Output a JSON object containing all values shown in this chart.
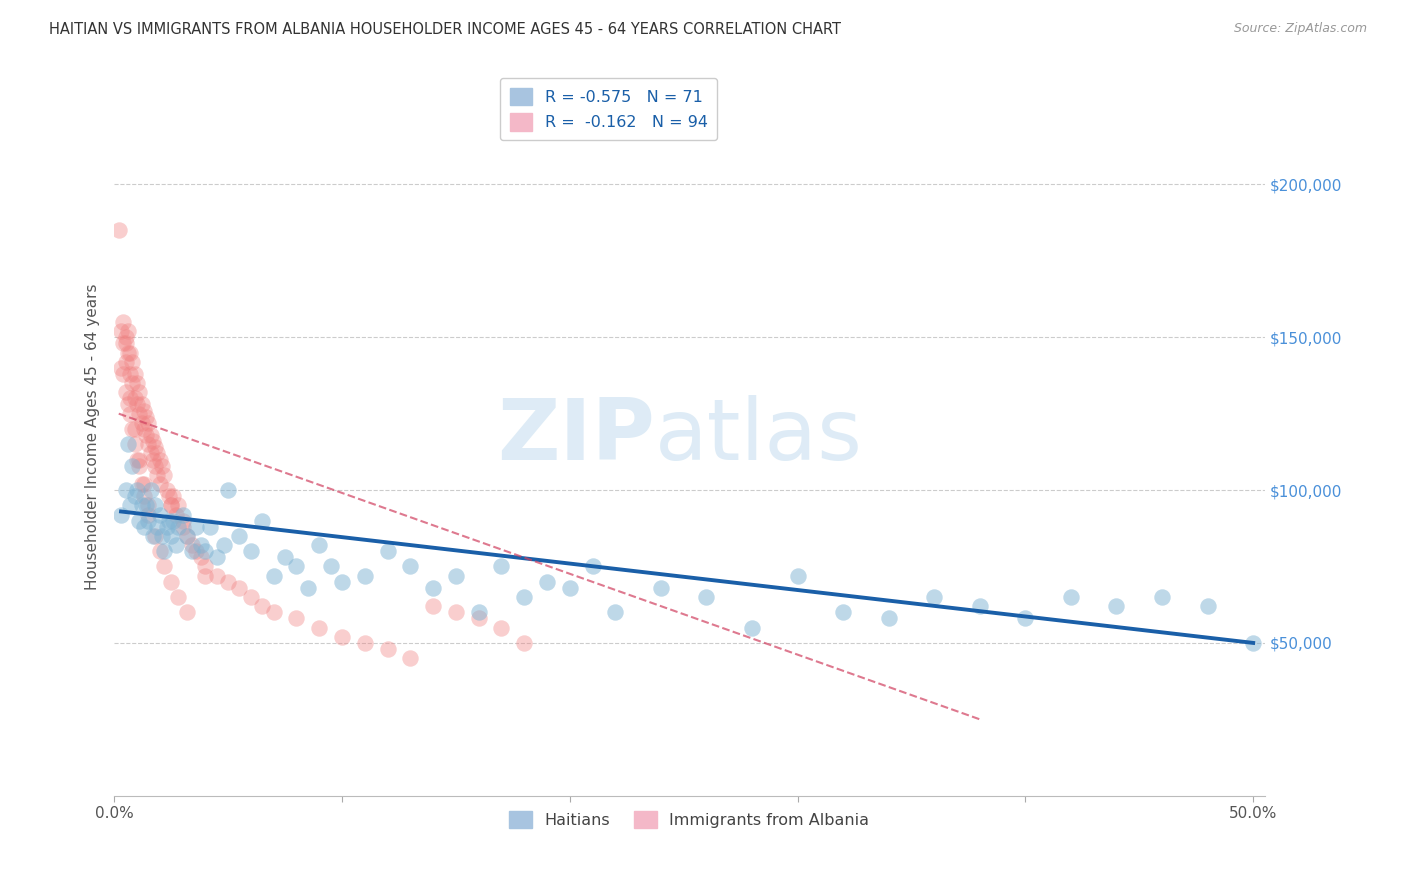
{
  "title": "HAITIAN VS IMMIGRANTS FROM ALBANIA HOUSEHOLDER INCOME AGES 45 - 64 YEARS CORRELATION CHART",
  "source": "Source: ZipAtlas.com",
  "ylabel": "Householder Income Ages 45 - 64 years",
  "xlim": [
    0.0,
    0.505
  ],
  "ylim": [
    0,
    235000
  ],
  "yticks_right": [
    50000,
    100000,
    150000,
    200000
  ],
  "yticklabels_right": [
    "$50,000",
    "$100,000",
    "$150,000",
    "$200,000"
  ],
  "series1_name": "Haitians",
  "series2_name": "Immigrants from Albania",
  "series1_color": "#7fb3d3",
  "series2_color": "#f08080",
  "trendline1_color": "#1a5fa8",
  "trendline2_color": "#d04060",
  "watermark_zip": "ZIP",
  "watermark_atlas": "atlas",
  "r1": "-0.575",
  "n1": "71",
  "r2": "-0.162",
  "n2": "94",
  "scatter1_x": [
    0.003,
    0.005,
    0.006,
    0.007,
    0.008,
    0.009,
    0.01,
    0.011,
    0.012,
    0.013,
    0.014,
    0.015,
    0.016,
    0.017,
    0.018,
    0.019,
    0.02,
    0.021,
    0.022,
    0.023,
    0.024,
    0.025,
    0.026,
    0.027,
    0.028,
    0.03,
    0.032,
    0.034,
    0.036,
    0.038,
    0.04,
    0.042,
    0.045,
    0.048,
    0.05,
    0.055,
    0.06,
    0.065,
    0.07,
    0.075,
    0.08,
    0.085,
    0.09,
    0.095,
    0.1,
    0.11,
    0.12,
    0.13,
    0.14,
    0.15,
    0.16,
    0.17,
    0.18,
    0.19,
    0.2,
    0.21,
    0.22,
    0.24,
    0.26,
    0.28,
    0.3,
    0.32,
    0.34,
    0.36,
    0.38,
    0.4,
    0.42,
    0.44,
    0.46,
    0.48,
    0.5
  ],
  "scatter1_y": [
    92000,
    100000,
    115000,
    95000,
    108000,
    98000,
    100000,
    90000,
    95000,
    88000,
    95000,
    90000,
    100000,
    85000,
    95000,
    88000,
    92000,
    85000,
    80000,
    88000,
    90000,
    85000,
    90000,
    82000,
    88000,
    92000,
    85000,
    80000,
    88000,
    82000,
    80000,
    88000,
    78000,
    82000,
    100000,
    85000,
    80000,
    90000,
    72000,
    78000,
    75000,
    68000,
    82000,
    75000,
    70000,
    72000,
    80000,
    75000,
    68000,
    72000,
    60000,
    75000,
    65000,
    70000,
    68000,
    75000,
    60000,
    68000,
    65000,
    55000,
    72000,
    60000,
    58000,
    65000,
    62000,
    58000,
    65000,
    62000,
    65000,
    62000,
    50000
  ],
  "scatter2_x": [
    0.002,
    0.003,
    0.004,
    0.004,
    0.005,
    0.005,
    0.006,
    0.006,
    0.007,
    0.007,
    0.008,
    0.008,
    0.009,
    0.009,
    0.01,
    0.01,
    0.011,
    0.011,
    0.012,
    0.012,
    0.013,
    0.013,
    0.014,
    0.014,
    0.015,
    0.015,
    0.016,
    0.016,
    0.017,
    0.017,
    0.018,
    0.018,
    0.019,
    0.019,
    0.02,
    0.02,
    0.021,
    0.022,
    0.023,
    0.024,
    0.025,
    0.026,
    0.027,
    0.028,
    0.03,
    0.032,
    0.034,
    0.036,
    0.038,
    0.04,
    0.045,
    0.05,
    0.055,
    0.06,
    0.065,
    0.07,
    0.08,
    0.09,
    0.1,
    0.11,
    0.12,
    0.13,
    0.14,
    0.15,
    0.16,
    0.17,
    0.18,
    0.03,
    0.025,
    0.04,
    0.003,
    0.004,
    0.005,
    0.006,
    0.007,
    0.008,
    0.009,
    0.01,
    0.011,
    0.012,
    0.013,
    0.015,
    0.018,
    0.02,
    0.022,
    0.025,
    0.028,
    0.032,
    0.005,
    0.007,
    0.009,
    0.011,
    0.013,
    0.015
  ],
  "scatter2_y": [
    185000,
    152000,
    148000,
    155000,
    142000,
    150000,
    145000,
    152000,
    138000,
    145000,
    135000,
    142000,
    130000,
    138000,
    128000,
    135000,
    125000,
    132000,
    122000,
    128000,
    120000,
    126000,
    118000,
    124000,
    115000,
    122000,
    112000,
    118000,
    110000,
    116000,
    108000,
    114000,
    105000,
    112000,
    102000,
    110000,
    108000,
    105000,
    100000,
    98000,
    95000,
    98000,
    92000,
    95000,
    88000,
    85000,
    82000,
    80000,
    78000,
    75000,
    72000,
    70000,
    68000,
    65000,
    62000,
    60000,
    58000,
    55000,
    52000,
    50000,
    48000,
    45000,
    62000,
    60000,
    58000,
    55000,
    50000,
    90000,
    95000,
    72000,
    140000,
    138000,
    132000,
    128000,
    125000,
    120000,
    115000,
    110000,
    108000,
    102000,
    98000,
    92000,
    85000,
    80000,
    75000,
    70000,
    65000,
    60000,
    148000,
    130000,
    120000,
    110000,
    102000,
    95000
  ],
  "trendline1_x": [
    0.003,
    0.5
  ],
  "trendline1_y": [
    93000,
    50000
  ],
  "trendline2_x": [
    0.002,
    0.38
  ],
  "trendline2_y": [
    125000,
    25000
  ]
}
